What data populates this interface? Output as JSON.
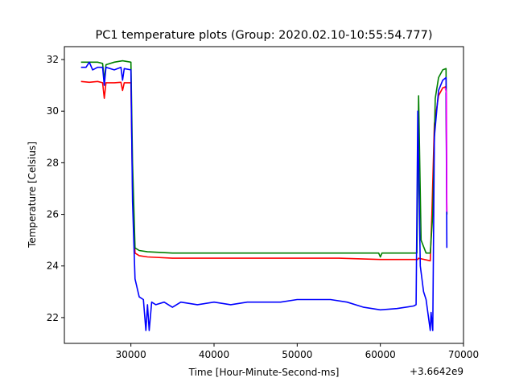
{
  "chart_data": {
    "type": "line",
    "title": "PC1 temperature plots (Group: 2020.02.10-10:55:54.777)",
    "xlabel": "Time [Hour-Minute-Second-ms]",
    "ylabel": "Temperature [Celsius]",
    "offset_text": "+3.6642e9",
    "xlim": [
      22000,
      70000
    ],
    "ylim": [
      21,
      32.5
    ],
    "xticks": [
      30000,
      40000,
      50000,
      60000,
      70000
    ],
    "xtick_labels": [
      "30000",
      "40000",
      "50000",
      "60000",
      "70000"
    ],
    "yticks": [
      22,
      24,
      26,
      28,
      30,
      32
    ],
    "ytick_labels": [
      "22",
      "24",
      "26",
      "28",
      "30",
      "32"
    ],
    "grid": false,
    "legend": "none",
    "series": [
      {
        "color": "#ff0000",
        "points": [
          [
            24000,
            31.15
          ],
          [
            25000,
            31.12
          ],
          [
            26000,
            31.15
          ],
          [
            26600,
            31.1
          ],
          [
            26800,
            30.5
          ],
          [
            27000,
            31.1
          ],
          [
            28000,
            31.1
          ],
          [
            28800,
            31.12
          ],
          [
            29000,
            30.8
          ],
          [
            29200,
            31.1
          ],
          [
            30000,
            31.1
          ],
          [
            30200,
            27
          ],
          [
            30500,
            24.5
          ],
          [
            31000,
            24.4
          ],
          [
            32000,
            24.35
          ],
          [
            35000,
            24.3
          ],
          [
            40000,
            24.3
          ],
          [
            45000,
            24.3
          ],
          [
            50000,
            24.3
          ],
          [
            55000,
            24.3
          ],
          [
            60000,
            24.25
          ],
          [
            64500,
            24.25
          ],
          [
            64600,
            24.3
          ],
          [
            66000,
            24.2
          ],
          [
            66200,
            26
          ],
          [
            66500,
            29.5
          ],
          [
            67000,
            30.6
          ],
          [
            67500,
            30.9
          ],
          [
            67900,
            30.95
          ],
          [
            68000,
            26
          ]
        ]
      },
      {
        "color": "#008000",
        "points": [
          [
            24000,
            31.9
          ],
          [
            25000,
            31.9
          ],
          [
            26000,
            31.9
          ],
          [
            26600,
            31.85
          ],
          [
            26800,
            31.2
          ],
          [
            27000,
            31.8
          ],
          [
            28000,
            31.9
          ],
          [
            29000,
            31.95
          ],
          [
            30000,
            31.9
          ],
          [
            30200,
            28
          ],
          [
            30500,
            24.7
          ],
          [
            31000,
            24.6
          ],
          [
            32000,
            24.55
          ],
          [
            35000,
            24.5
          ],
          [
            40000,
            24.5
          ],
          [
            45000,
            24.5
          ],
          [
            50000,
            24.5
          ],
          [
            55000,
            24.5
          ],
          [
            59800,
            24.5
          ],
          [
            60000,
            24.35
          ],
          [
            60200,
            24.5
          ],
          [
            64000,
            24.5
          ],
          [
            64400,
            24.5
          ],
          [
            64600,
            30.6
          ],
          [
            64900,
            25
          ],
          [
            65500,
            24.5
          ],
          [
            66000,
            24.5
          ],
          [
            66300,
            26
          ],
          [
            66600,
            30.5
          ],
          [
            67000,
            31.3
          ],
          [
            67500,
            31.6
          ],
          [
            67900,
            31.65
          ],
          [
            68000,
            26
          ]
        ]
      },
      {
        "color": "#0000ff",
        "points": [
          [
            24000,
            31.7
          ],
          [
            24600,
            31.7
          ],
          [
            25000,
            31.9
          ],
          [
            25400,
            31.6
          ],
          [
            26000,
            31.7
          ],
          [
            26600,
            31.7
          ],
          [
            26800,
            31.0
          ],
          [
            27000,
            31.7
          ],
          [
            28000,
            31.6
          ],
          [
            28800,
            31.7
          ],
          [
            29000,
            31.2
          ],
          [
            29200,
            31.65
          ],
          [
            30000,
            31.6
          ],
          [
            30200,
            26.5
          ],
          [
            30500,
            23.5
          ],
          [
            31000,
            22.8
          ],
          [
            31500,
            22.7
          ],
          [
            31800,
            21.5
          ],
          [
            32000,
            22.5
          ],
          [
            32200,
            21.5
          ],
          [
            32500,
            22.6
          ],
          [
            33000,
            22.5
          ],
          [
            34000,
            22.6
          ],
          [
            35000,
            22.4
          ],
          [
            36000,
            22.6
          ],
          [
            38000,
            22.5
          ],
          [
            40000,
            22.6
          ],
          [
            42000,
            22.5
          ],
          [
            44000,
            22.6
          ],
          [
            46000,
            22.6
          ],
          [
            48000,
            22.6
          ],
          [
            50000,
            22.7
          ],
          [
            52000,
            22.7
          ],
          [
            54000,
            22.7
          ],
          [
            56000,
            22.6
          ],
          [
            58000,
            22.4
          ],
          [
            60000,
            22.3
          ],
          [
            62000,
            22.35
          ],
          [
            64000,
            22.45
          ],
          [
            64300,
            22.5
          ],
          [
            64500,
            30.0
          ],
          [
            64800,
            24.0
          ],
          [
            65200,
            23.0
          ],
          [
            65500,
            22.7
          ],
          [
            66000,
            21.5
          ],
          [
            66100,
            22.2
          ],
          [
            66300,
            21.5
          ],
          [
            66500,
            29.0
          ],
          [
            67000,
            30.8
          ],
          [
            67500,
            31.2
          ],
          [
            67900,
            31.3
          ],
          [
            68000,
            24.7
          ]
        ]
      },
      {
        "color": "#ff00ff",
        "points": [
          [
            67800,
            30.9
          ],
          [
            67950,
            30.7
          ],
          [
            68000,
            26.1
          ]
        ]
      }
    ]
  }
}
